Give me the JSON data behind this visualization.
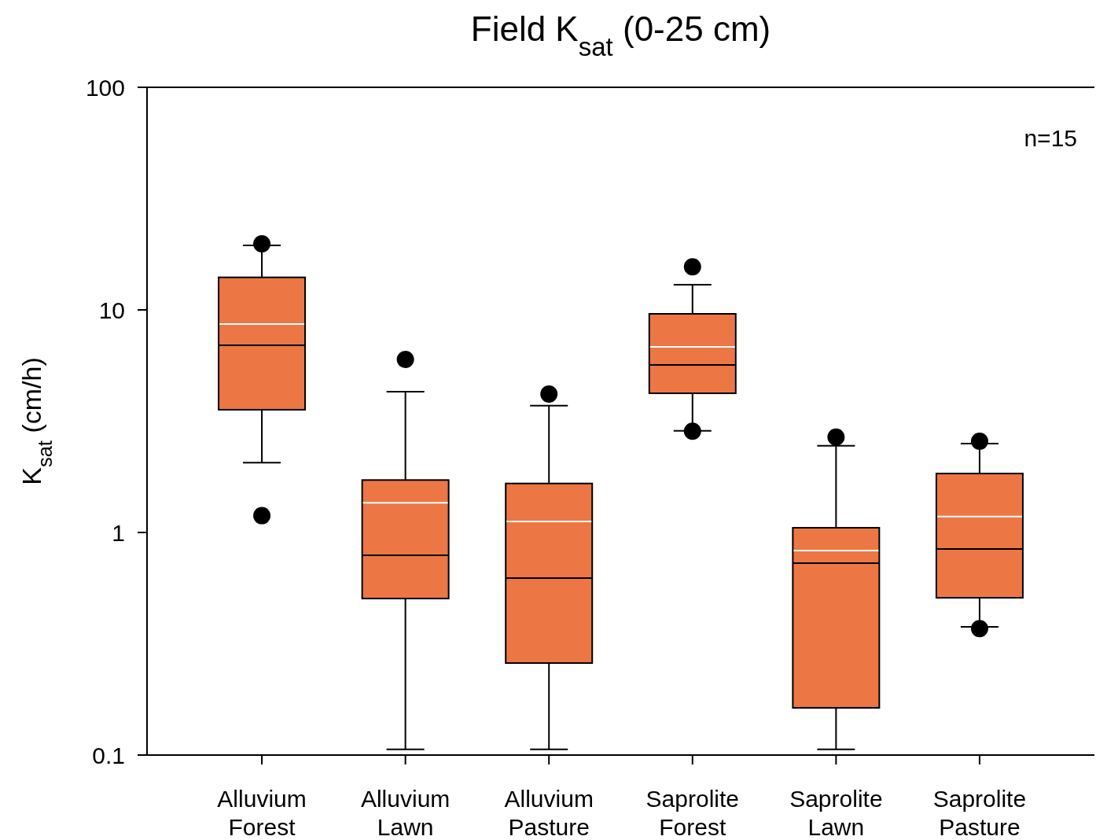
{
  "chart_data": {
    "type": "box",
    "title": "Field K$_{sat}$ (0-25 cm)",
    "ylabel": "K$_{sat}$ (cm/h)",
    "annotations": [
      "n=15"
    ],
    "categories": [
      "Alluvium Forest",
      "Alluvium Lawn",
      "Alluvium Pasture",
      "Saprolite Forest",
      "Saprolite Lawn",
      "Saprolite Pasture"
    ],
    "log": true,
    "ylim": [
      0.1,
      100
    ],
    "yticks": [
      0.1,
      1,
      10,
      100
    ],
    "grid": false,
    "color": "#ec7744",
    "boxes": [
      {
        "low": 2.06,
        "q1": 3.56,
        "median": 6.93,
        "q3": 14,
        "high": 19.5,
        "mean": 8.64,
        "outliers": [
          19.8,
          1.19
        ]
      },
      {
        "low": 0.106,
        "q1": 0.505,
        "median": 0.79,
        "q3": 1.72,
        "high": 4.29,
        "mean": 1.36,
        "outliers": [
          5.99
        ]
      },
      {
        "low": 0.106,
        "q1": 0.259,
        "median": 0.624,
        "q3": 1.66,
        "high": 3.71,
        "mean": 1.12,
        "outliers": [
          4.19
        ]
      },
      {
        "low": 2.86,
        "q1": 4.22,
        "median": 5.66,
        "q3": 9.6,
        "high": 12.97,
        "mean": 6.82,
        "outliers": [
          15.6,
          2.85
        ]
      },
      {
        "low": 0.106,
        "q1": 0.163,
        "median": 0.728,
        "q3": 1.05,
        "high": 2.45,
        "mean": 0.83,
        "outliers": [
          2.68
        ]
      },
      {
        "low": 0.377,
        "q1": 0.509,
        "median": 0.843,
        "q3": 1.84,
        "high": 2.51,
        "mean": 1.18,
        "outliers": [
          2.57,
          0.37
        ]
      }
    ]
  }
}
